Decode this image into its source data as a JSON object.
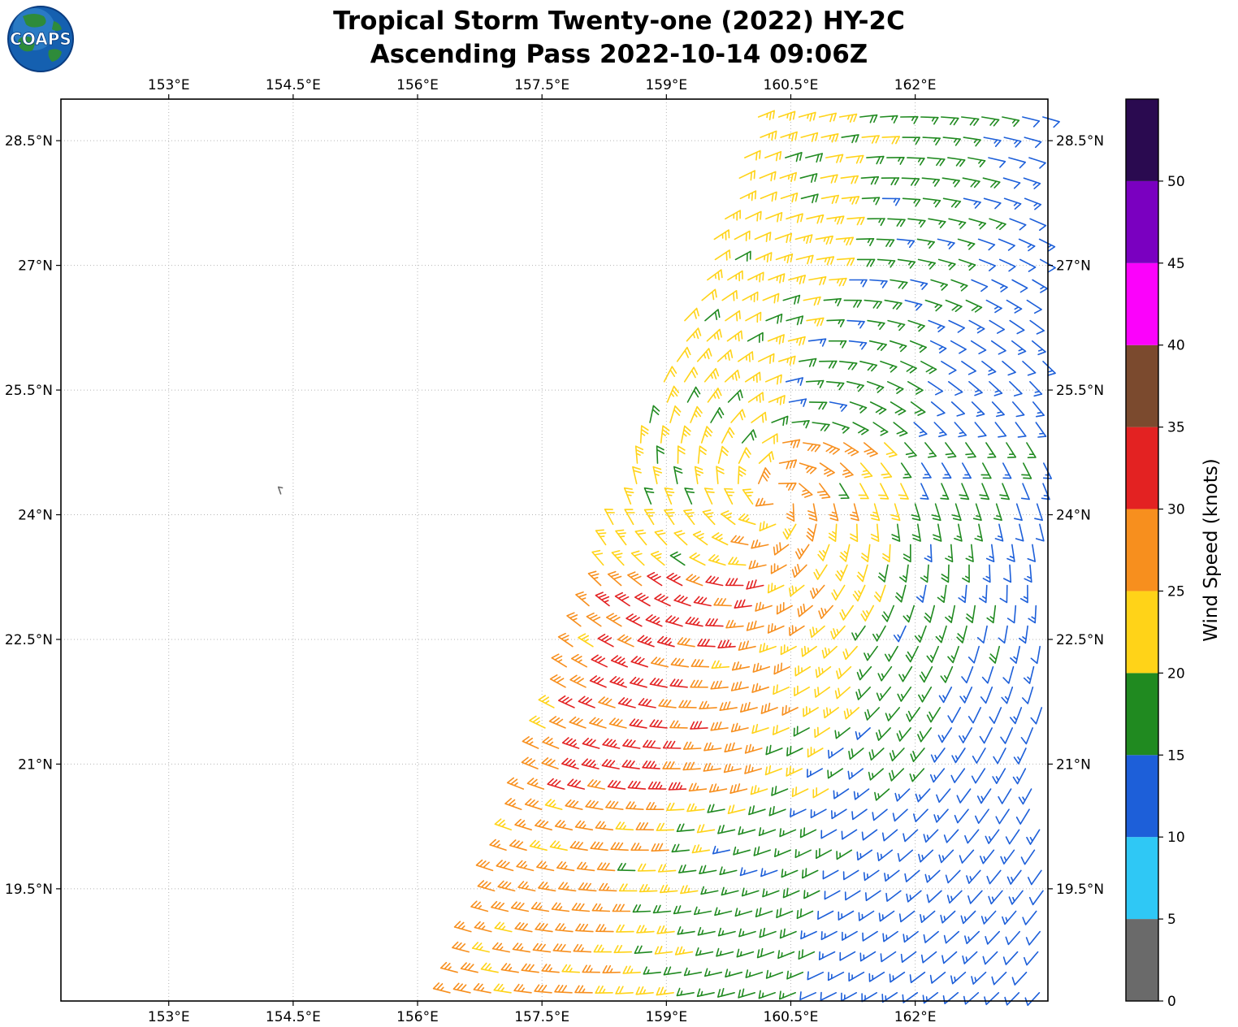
{
  "header": {
    "title_line1": "Tropical Storm Twenty-one (2022) HY-2C",
    "title_line2": "Ascending Pass 2022-10-14 09:06Z",
    "logo_text": "COAPS"
  },
  "chart_data": {
    "type": "wind_barb_map",
    "title": "Tropical Storm Twenty-one (2022) HY-2C",
    "subtitle": "Ascending Pass 2022-10-14 09:06Z",
    "axes": {
      "xlim": [
        151.7,
        163.6
      ],
      "ylim": [
        18.15,
        29.0
      ],
      "grid": true,
      "x_ticks": [
        {
          "value": 153,
          "label": "153°E"
        },
        {
          "value": 154.5,
          "label": "154.5°E"
        },
        {
          "value": 156,
          "label": "156°E"
        },
        {
          "value": 157.5,
          "label": "157.5°E"
        },
        {
          "value": 159,
          "label": "159°E"
        },
        {
          "value": 160.5,
          "label": "160.5°E"
        },
        {
          "value": 162,
          "label": "162°E"
        }
      ],
      "y_ticks": [
        {
          "value": 19.5,
          "label": "19.5°N"
        },
        {
          "value": 21,
          "label": "21°N"
        },
        {
          "value": 22.5,
          "label": "22.5°N"
        },
        {
          "value": 24,
          "label": "24°N"
        },
        {
          "value": 25.5,
          "label": "25.5°N"
        },
        {
          "value": 27,
          "label": "27°N"
        },
        {
          "value": 28.5,
          "label": "28.5°N"
        }
      ]
    },
    "colorbar": {
      "label": "Wind Speed (knots)",
      "min": 0,
      "max": 55,
      "ticks": [
        0,
        5,
        10,
        15,
        20,
        25,
        30,
        35,
        40,
        45,
        50
      ],
      "levels": [
        {
          "min": 0,
          "max": 5,
          "color": "#6a6a6a"
        },
        {
          "min": 5,
          "max": 10,
          "color": "#2fc8f5"
        },
        {
          "min": 10,
          "max": 15,
          "color": "#1d5fd9"
        },
        {
          "min": 15,
          "max": 20,
          "color": "#208a20"
        },
        {
          "min": 20,
          "max": 25,
          "color": "#ffd318"
        },
        {
          "min": 25,
          "max": 30,
          "color": "#f78f1e"
        },
        {
          "min": 30,
          "max": 35,
          "color": "#e32222"
        },
        {
          "min": 35,
          "max": 40,
          "color": "#7b4a2e"
        },
        {
          "min": 40,
          "max": 45,
          "color": "#fb02fb"
        },
        {
          "min": 45,
          "max": 50,
          "color": "#7a00c0"
        },
        {
          "min": 50,
          "max": 55,
          "color": "#2a0a50"
        }
      ]
    },
    "wind_field": {
      "units": "knots",
      "storm_center": {
        "lon": 160.3,
        "lat": 24.2
      },
      "swath": {
        "left_edge": {
          "lat0": 18.3,
          "lon0": 156.45,
          "dlon_dlat": 0.354
        },
        "lat_min": 18.25,
        "lat_max": 28.95,
        "lon_max": 163.55,
        "grid_step_deg": 0.245
      },
      "speed_zones": [
        {
          "lat_min": 18.0,
          "lat_max": 20.6,
          "bands": [
            {
              "d_max": 1.85,
              "speed": 27
            },
            {
              "d_max": 2.55,
              "speed": 22
            },
            {
              "d_max": 4.05,
              "speed": 17
            },
            {
              "d_max": 99,
              "speed": 12
            }
          ]
        },
        {
          "lat_min": 20.6,
          "lat_max": 23.3,
          "bands": [
            {
              "d_max": 0.25,
              "speed": 27
            },
            {
              "d_max": 1.9,
              "speed": 31
            },
            {
              "d_max": 2.8,
              "speed": 27
            },
            {
              "d_max": 3.5,
              "speed": 22
            },
            {
              "d_max": 4.9,
              "speed": 17
            },
            {
              "d_max": 99,
              "speed": 12
            }
          ]
        },
        {
          "lat_min": 23.3,
          "lat_max": 25.1,
          "bands": [
            {
              "d_max": 1.6,
              "speed": 22
            },
            {
              "d_max": 2.7,
              "speed": 26
            },
            {
              "d_max": 3.3,
              "speed": 22
            },
            {
              "d_max": 4.6,
              "speed": 17
            },
            {
              "d_max": 99,
              "speed": 12
            }
          ]
        },
        {
          "lat_min": 25.1,
          "lat_max": 29.0,
          "bands": [
            {
              "d_max": 1.5,
              "speed": 22
            },
            {
              "d_max": 3.0,
              "speed": 17
            },
            {
              "d_max": 99,
              "speed": 12
            }
          ]
        }
      ],
      "isolated_barb": {
        "lon": 154.35,
        "lat": 24.25,
        "speed": 3
      }
    }
  }
}
